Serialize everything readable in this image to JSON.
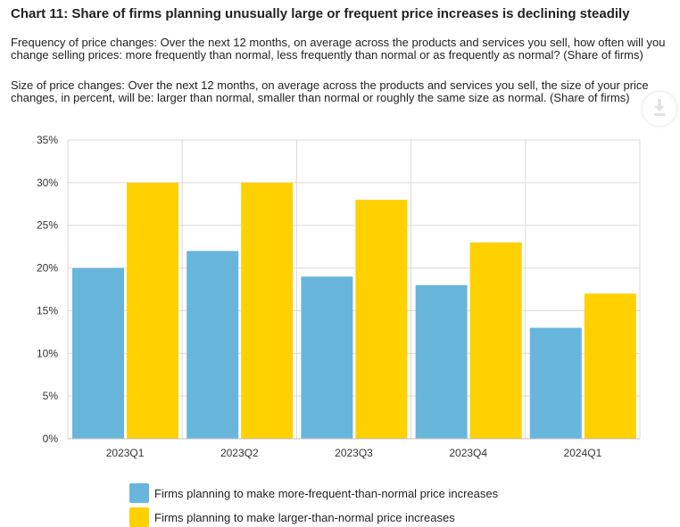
{
  "chart_data": {
    "type": "bar",
    "title": "Chart 11: Share of firms planning unusually large or frequent price increases is declining steadily",
    "description_frequency": "Frequency of price changes: Over the next 12 months, on average across the products and services you sell, how often will you change selling prices: more frequently than normal, less frequently than normal or as frequently as normal? (Share of firms)",
    "description_size": "Size of price changes: Over the next 12 months, on average across the products and services you sell, the size of your price changes, in percent, will be: larger than normal, smaller than normal or roughly the same size as normal. (Share of firms)",
    "categories": [
      "2023Q1",
      "2023Q2",
      "2023Q3",
      "2023Q4",
      "2024Q1"
    ],
    "series": [
      {
        "name": "Firms planning to make more-frequent-than-normal price increases",
        "color": "#68b6dc",
        "values": [
          20,
          22,
          19,
          18,
          13
        ]
      },
      {
        "name": "Firms planning to make larger-than-normal price increases",
        "color": "#ffd100",
        "values": [
          30,
          30,
          28,
          23,
          17
        ]
      }
    ],
    "ylim": [
      0,
      35
    ],
    "yticks": [
      "0%",
      "5%",
      "10%",
      "15%",
      "20%",
      "25%",
      "30%",
      "35%"
    ],
    "ytick_values": [
      0,
      5,
      10,
      15,
      20,
      25,
      30,
      35
    ],
    "grid": true,
    "legend_position": "bottom",
    "xlabel": "",
    "ylabel": ""
  },
  "icons": {
    "download": "download-icon"
  }
}
